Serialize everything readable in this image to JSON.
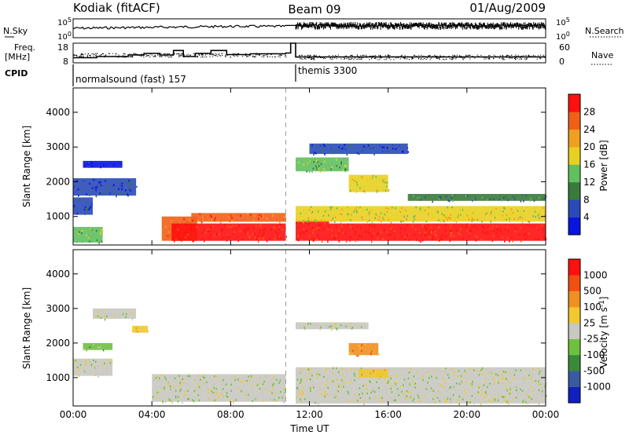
{
  "header": {
    "station": "Kodiak (fitACF)",
    "beam": "Beam 09",
    "date": "01/Aug/2009"
  },
  "strip_panels": {
    "nsky": {
      "label": "N.Sky",
      "right_label": "N.Search",
      "ticks": [
        "10^5",
        "10^0"
      ],
      "right_ticks": [
        "10^5",
        "10^0"
      ],
      "scale": "log"
    },
    "freq": {
      "label_line1": "Freq.",
      "label_line2": "[MHz]",
      "right_label": "Nave",
      "ticks": [
        "18",
        "8"
      ],
      "right_ticks": [
        "60",
        "0"
      ],
      "ylim": [
        8,
        18
      ],
      "right_ylim": [
        0,
        60
      ],
      "steps": [
        {
          "t": 0.0,
          "f": 10.6
        },
        {
          "t": 1.2,
          "f": 11.2
        },
        {
          "t": 2.8,
          "f": 12.0
        },
        {
          "t": 3.6,
          "f": 12.8
        },
        {
          "t": 4.4,
          "f": 12.0
        },
        {
          "t": 5.1,
          "f": 14.3
        },
        {
          "t": 5.6,
          "f": 11.2
        },
        {
          "t": 6.2,
          "f": 12.8
        },
        {
          "t": 7.0,
          "f": 14.3
        },
        {
          "t": 7.8,
          "f": 12.2
        },
        {
          "t": 9.0,
          "f": 12.6
        },
        {
          "t": 10.8,
          "f": 13.0
        },
        {
          "t": 11.05,
          "f": 18.0
        },
        {
          "t": 11.3,
          "f": 11.0
        },
        {
          "t": 24.0,
          "f": 11.0
        }
      ]
    },
    "cpid": {
      "label": "CPID",
      "programs": [
        {
          "name": "normalsound (fast) 157",
          "start": 0,
          "end": 11.3
        },
        {
          "name": "themis 3300",
          "start": 11.3,
          "end": 24
        }
      ]
    }
  },
  "chart_data": [
    {
      "type": "heatmap",
      "quantity": "Power",
      "ylabel": "Slant Range [km]",
      "xlabel": "Time UT",
      "xlim": [
        0,
        24
      ],
      "ylim": [
        180,
        4700
      ],
      "yticks": [
        "1000",
        "2000",
        "3000",
        "4000"
      ],
      "xticks": [
        "00:00",
        "04:00",
        "08:00",
        "12:00",
        "16:00",
        "20:00",
        "00:00"
      ],
      "data_gap_hours": [
        10.8,
        11.3
      ],
      "colorbar": {
        "label": "Power [dB]",
        "ticks": [
          "4",
          "8",
          "12",
          "16",
          "20",
          "24",
          "28"
        ],
        "colors": [
          "#0a14e0",
          "#2a4ab8",
          "#3a7a3a",
          "#60c060",
          "#e8d020",
          "#f0a020",
          "#f06018",
          "#ff1010"
        ]
      },
      "regions": [
        {
          "t0": 0.0,
          "t1": 1.5,
          "r0": 250,
          "r1": 700,
          "level": 3
        },
        {
          "t0": 0.0,
          "t1": 1.0,
          "r0": 1050,
          "r1": 1550,
          "level": 1
        },
        {
          "t0": 0.0,
          "t1": 3.2,
          "r0": 1600,
          "r1": 2100,
          "level": 1
        },
        {
          "t0": 0.5,
          "t1": 2.5,
          "r0": 2400,
          "r1": 2600,
          "level": 0
        },
        {
          "t0": 4.5,
          "t1": 6.3,
          "r0": 300,
          "r1": 1000,
          "level": 6
        },
        {
          "t0": 5.0,
          "t1": 10.8,
          "r0": 300,
          "r1": 800,
          "level": 7
        },
        {
          "t0": 6.0,
          "t1": 10.8,
          "r0": 850,
          "r1": 1100,
          "level": 6
        },
        {
          "t0": 11.3,
          "t1": 13.0,
          "r0": 300,
          "r1": 900,
          "level": 7
        },
        {
          "t0": 11.3,
          "t1": 24.0,
          "r0": 850,
          "r1": 1300,
          "level": 4
        },
        {
          "t0": 13.0,
          "t1": 24.0,
          "r0": 300,
          "r1": 800,
          "level": 7
        },
        {
          "t0": 11.3,
          "t1": 14.0,
          "r0": 2300,
          "r1": 2700,
          "level": 3
        },
        {
          "t0": 12.0,
          "t1": 17.0,
          "r0": 2800,
          "r1": 3100,
          "level": 1
        },
        {
          "t0": 14.0,
          "t1": 16.0,
          "r0": 1700,
          "r1": 2200,
          "level": 4
        },
        {
          "t0": 17.0,
          "t1": 24.0,
          "r0": 1450,
          "r1": 1650,
          "level": 2
        }
      ]
    },
    {
      "type": "heatmap",
      "quantity": "Velocity",
      "ylabel": "Slant Range [km]",
      "xlabel": "Time UT",
      "xlim": [
        0,
        24
      ],
      "ylim": [
        180,
        4700
      ],
      "yticks": [
        "1000",
        "2000",
        "3000",
        "4000"
      ],
      "xticks": [
        "00:00",
        "04:00",
        "08:00",
        "12:00",
        "16:00",
        "20:00",
        "00:00"
      ],
      "data_gap_hours": [
        10.8,
        11.3
      ],
      "colorbar": {
        "label": "Velocity [m s^-1]",
        "ticks": [
          "1000",
          "500",
          "100",
          "25",
          "-25",
          "-100",
          "-500",
          "-1000"
        ],
        "colors": [
          "#1020c0",
          "#3a5aa0",
          "#3a8a3a",
          "#70c040",
          "#c8c8c0",
          "#f0c830",
          "#f09020",
          "#f05010",
          "#ff1010"
        ]
      },
      "regions": [
        {
          "t0": 0.0,
          "t1": 2.0,
          "r0": 1050,
          "r1": 1550,
          "level": 4
        },
        {
          "t0": 0.5,
          "t1": 2.0,
          "r0": 1800,
          "r1": 2000,
          "level": 3
        },
        {
          "t0": 1.0,
          "t1": 3.2,
          "r0": 2700,
          "r1": 3000,
          "level": 4
        },
        {
          "t0": 3.0,
          "t1": 3.8,
          "r0": 2300,
          "r1": 2500,
          "level": 5
        },
        {
          "t0": 4.0,
          "t1": 10.8,
          "r0": 300,
          "r1": 1100,
          "level": 4
        },
        {
          "t0": 11.3,
          "t1": 24.0,
          "r0": 250,
          "r1": 900,
          "level": 4
        },
        {
          "t0": 11.3,
          "t1": 24.0,
          "r0": 900,
          "r1": 1300,
          "level": 4
        },
        {
          "t0": 11.3,
          "t1": 15.0,
          "r0": 2400,
          "r1": 2600,
          "level": 4
        },
        {
          "t0": 14.0,
          "t1": 15.5,
          "r0": 1650,
          "r1": 2000,
          "level": 6
        },
        {
          "t0": 14.5,
          "t1": 16.0,
          "r0": 1000,
          "r1": 1250,
          "level": 5
        }
      ]
    }
  ]
}
